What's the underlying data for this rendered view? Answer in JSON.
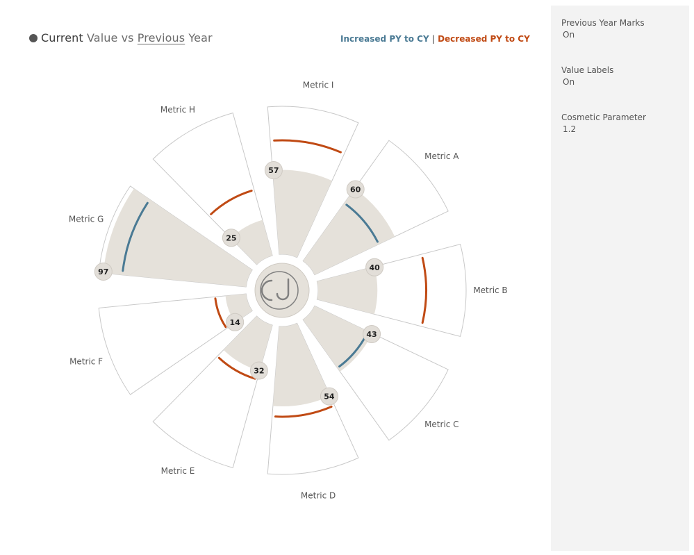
{
  "title": {
    "part1_bold": "Current",
    "part2": " Value vs ",
    "part3_underlined": "Previous",
    "part4": " Year"
  },
  "legend": {
    "increased_label": "Increased PY to CY",
    "separator": "|",
    "decreased_label": "Decreased PY to CY",
    "increased_color": "#4a7a94",
    "decreased_color": "#c04a14"
  },
  "parameters": [
    {
      "label": "Previous Year Marks",
      "value": "On"
    },
    {
      "label": "Value Labels",
      "value": "On"
    },
    {
      "label": "Cosmetic Parameter",
      "value": "1.2"
    }
  ],
  "chart_data": {
    "type": "radial-bar",
    "scale_max": 100,
    "colors": {
      "current_fill": "#e5e1da",
      "sector_outline": "#c8c8c8",
      "label_bubble": "#e2ded8",
      "center_logo": "#808080"
    },
    "categories": [
      "Metric A",
      "Metric B",
      "Metric C",
      "Metric D",
      "Metric E",
      "Metric F",
      "Metric G",
      "Metric H",
      "Metric I"
    ],
    "series": [
      {
        "name": "Current",
        "values": [
          60,
          40,
          43,
          54,
          32,
          14,
          97,
          25,
          57
        ]
      },
      {
        "name": "Previous",
        "values": [
          48,
          73,
          40,
          61,
          38,
          21,
          84,
          46,
          77
        ]
      }
    ],
    "value_labels": [
      "60",
      "40",
      "43",
      "54",
      "32",
      "14",
      "97",
      "25",
      "57"
    ]
  }
}
